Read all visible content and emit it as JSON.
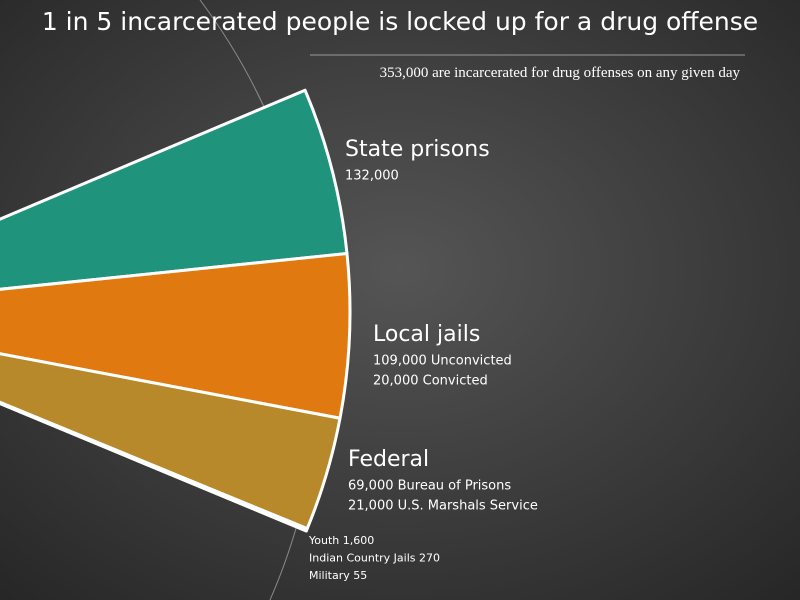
{
  "chart_data": {
    "type": "pie",
    "title": "1 in 5 incarcerated people is locked up for a drug offense",
    "subtitle": "353,000 are incarcerated for drug offenses on any given day",
    "segments": [
      {
        "name": "State prisons",
        "color": "#20937c",
        "parts": [
          {
            "value": 132000,
            "label": "132,000"
          }
        ]
      },
      {
        "name": "Local jails",
        "color": "#e07a10",
        "parts": [
          {
            "value": 109000,
            "label": "109,000 Unconvicted"
          },
          {
            "value": 20000,
            "label": "20,000 Convicted"
          }
        ]
      },
      {
        "name": "Federal",
        "color": "#b8892a",
        "parts": [
          {
            "value": 69000,
            "label": "69,000 Bureau of Prisons"
          },
          {
            "value": 21000,
            "label": "21,000 U.S. Marshals Service"
          }
        ]
      }
    ],
    "other": {
      "color": "#cfcfcf",
      "parts": [
        {
          "value": 1600,
          "label": "Youth 1,600"
        },
        {
          "value": 270,
          "label": "Indian Country Jails 270"
        },
        {
          "value": 55,
          "label": "Military 55"
        }
      ]
    }
  }
}
